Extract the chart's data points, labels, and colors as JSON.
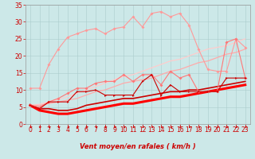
{
  "xlabel": "Vent moyen/en rafales ( km/h )",
  "background_color": "#cce8e8",
  "grid_color": "#aacccc",
  "x": [
    0,
    1,
    2,
    3,
    4,
    5,
    6,
    7,
    8,
    9,
    10,
    11,
    12,
    13,
    14,
    15,
    16,
    17,
    18,
    19,
    20,
    21,
    22,
    23
  ],
  "line_pink_high_y": [
    10.5,
    10.5,
    17.5,
    22.0,
    25.5,
    26.5,
    27.5,
    28.0,
    26.5,
    28.0,
    28.5,
    31.5,
    28.5,
    32.5,
    33.0,
    31.5,
    32.5,
    29.0,
    22.0,
    16.0,
    15.5,
    15.5,
    25.0,
    22.5
  ],
  "line_pink_high_color": "#ff9999",
  "line_pink_mid_y": [
    5.5,
    5.0,
    6.5,
    7.5,
    9.0,
    10.5,
    10.5,
    12.0,
    12.5,
    12.5,
    14.5,
    12.5,
    14.5,
    14.5,
    11.5,
    15.5,
    13.5,
    14.5,
    9.5,
    9.5,
    9.5,
    24.0,
    25.0,
    13.5
  ],
  "line_pink_mid_color": "#ff7777",
  "line_red_jagged_y": [
    5.5,
    4.5,
    6.5,
    6.5,
    6.5,
    9.5,
    9.5,
    10.0,
    8.5,
    8.5,
    8.5,
    8.5,
    12.5,
    14.5,
    8.5,
    11.5,
    9.5,
    9.5,
    9.5,
    9.5,
    9.5,
    13.5,
    13.5,
    13.5
  ],
  "line_red_jagged_color": "#cc0000",
  "line_diag_upper_y": [
    5.5,
    5.8,
    6.5,
    7.2,
    8.0,
    9.0,
    10.0,
    11.0,
    12.0,
    13.0,
    14.0,
    14.5,
    15.5,
    16.5,
    17.5,
    18.5,
    19.0,
    20.0,
    21.0,
    22.0,
    22.5,
    23.0,
    24.0,
    25.0
  ],
  "line_diag_upper_color": "#ffcccc",
  "line_diag_mid_y": [
    5.5,
    5.5,
    6.0,
    6.5,
    7.0,
    7.5,
    8.5,
    9.5,
    10.0,
    11.0,
    12.0,
    12.5,
    13.0,
    13.5,
    14.5,
    15.5,
    16.0,
    17.0,
    18.0,
    18.5,
    19.5,
    20.5,
    21.0,
    22.0
  ],
  "line_diag_mid_color": "#ffaaaa",
  "line_diag_lower_y": [
    5.5,
    4.5,
    4.5,
    4.0,
    4.0,
    4.5,
    5.5,
    6.0,
    6.5,
    7.0,
    7.5,
    7.5,
    8.0,
    8.5,
    9.0,
    9.5,
    9.5,
    10.0,
    10.0,
    10.5,
    11.0,
    11.5,
    12.0,
    12.5
  ],
  "line_diag_lower_color": "#cc0000",
  "line_diag_lowest_y": [
    5.5,
    4.0,
    3.5,
    3.0,
    3.0,
    3.5,
    4.0,
    4.5,
    5.0,
    5.5,
    6.0,
    6.0,
    6.5,
    7.0,
    7.5,
    8.0,
    8.0,
    8.5,
    9.0,
    9.5,
    10.0,
    10.5,
    11.0,
    11.5
  ],
  "line_diag_lowest_color": "#ff0000",
  "xlim": [
    -0.5,
    23.5
  ],
  "ylim": [
    0,
    35
  ],
  "yticks": [
    0,
    5,
    10,
    15,
    20,
    25,
    30,
    35
  ],
  "xticks": [
    0,
    1,
    2,
    3,
    4,
    5,
    6,
    7,
    8,
    9,
    10,
    11,
    12,
    13,
    14,
    15,
    16,
    17,
    18,
    19,
    20,
    21,
    22,
    23
  ],
  "label_color": "#cc0000",
  "label_fontsize": 6,
  "tick_fontsize": 5.5
}
